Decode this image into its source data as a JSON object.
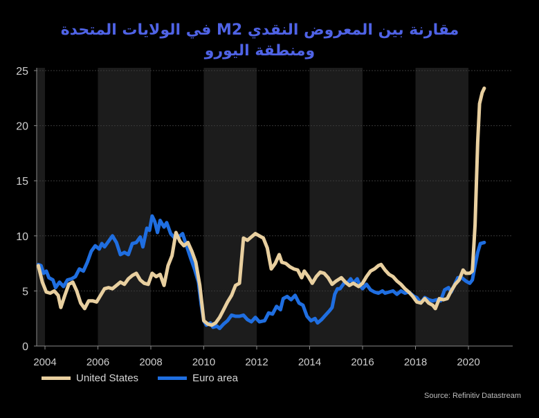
{
  "title_line1": "مقارنة بين المعروض النقدي M2  في الولايات المتحدة",
  "title_line2": "ومنطقة اليورو",
  "source": "Source: Refinitiv Datastream",
  "colors": {
    "background": "#000000",
    "band": "#1c1c1c",
    "us": "#e8cf9f",
    "euro": "#1f6ee0",
    "title": "#4f63e6",
    "axis": "#8a8a8a",
    "grid": "#3a3a3a"
  },
  "chart_data": {
    "type": "line",
    "title": "مقارنة بين المعروض النقدي M2  في الولايات المتحدة ومنطقة اليورو",
    "xlabel": "",
    "ylabel": "",
    "xlim": [
      2003.7,
      2021.7
    ],
    "ylim": [
      0,
      25
    ],
    "yticks": [
      0,
      5,
      10,
      15,
      20,
      25
    ],
    "ytick_labels": [
      "0",
      "5",
      "10",
      "15",
      "20",
      "25"
    ],
    "xticks": [
      2004,
      2006,
      2008,
      2010,
      2012,
      2014,
      2016,
      2018,
      2020
    ],
    "xtick_labels": [
      "2004",
      "2006",
      "2008",
      "2010",
      "2012",
      "2014",
      "2016",
      "2018",
      "2020"
    ],
    "shaded_bands": [
      [
        2003.7,
        2004
      ],
      [
        2006,
        2008
      ],
      [
        2010,
        2012
      ],
      [
        2014,
        2016
      ],
      [
        2018,
        2020
      ]
    ],
    "grid": "horizontal dotted",
    "legend": "bottom-left",
    "series": [
      {
        "name": "United States",
        "color": "#e8cf9f",
        "points": [
          [
            2003.75,
            7.3
          ],
          [
            2003.9,
            5.8
          ],
          [
            2004.05,
            4.9
          ],
          [
            2004.2,
            4.8
          ],
          [
            2004.35,
            5.0
          ],
          [
            2004.5,
            4.6
          ],
          [
            2004.6,
            3.5
          ],
          [
            2004.75,
            4.6
          ],
          [
            2004.9,
            5.6
          ],
          [
            2005.05,
            5.8
          ],
          [
            2005.2,
            5.0
          ],
          [
            2005.35,
            3.9
          ],
          [
            2005.5,
            3.4
          ],
          [
            2005.65,
            4.1
          ],
          [
            2005.8,
            4.1
          ],
          [
            2005.95,
            4.0
          ],
          [
            2006.1,
            4.6
          ],
          [
            2006.25,
            5.2
          ],
          [
            2006.4,
            5.3
          ],
          [
            2006.55,
            5.2
          ],
          [
            2006.7,
            5.5
          ],
          [
            2006.85,
            5.8
          ],
          [
            2007.0,
            5.6
          ],
          [
            2007.15,
            6.1
          ],
          [
            2007.3,
            6.4
          ],
          [
            2007.45,
            6.6
          ],
          [
            2007.6,
            6.0
          ],
          [
            2007.75,
            5.7
          ],
          [
            2007.9,
            5.6
          ],
          [
            2008.05,
            6.6
          ],
          [
            2008.2,
            6.3
          ],
          [
            2008.35,
            6.5
          ],
          [
            2008.5,
            5.5
          ],
          [
            2008.65,
            7.3
          ],
          [
            2008.8,
            8.2
          ],
          [
            2008.95,
            10.3
          ],
          [
            2009.1,
            9.5
          ],
          [
            2009.25,
            9.1
          ],
          [
            2009.4,
            9.4
          ],
          [
            2009.55,
            8.6
          ],
          [
            2009.7,
            7.6
          ],
          [
            2009.85,
            5.5
          ],
          [
            2010.0,
            2.3
          ],
          [
            2010.15,
            2.0
          ],
          [
            2010.3,
            1.9
          ],
          [
            2010.45,
            2.1
          ],
          [
            2010.6,
            2.6
          ],
          [
            2010.75,
            3.3
          ],
          [
            2010.9,
            4.0
          ],
          [
            2011.05,
            4.6
          ],
          [
            2011.2,
            5.5
          ],
          [
            2011.35,
            5.7
          ],
          [
            2011.5,
            9.8
          ],
          [
            2011.65,
            9.6
          ],
          [
            2011.8,
            9.9
          ],
          [
            2011.95,
            10.2
          ],
          [
            2012.1,
            10.0
          ],
          [
            2012.25,
            9.8
          ],
          [
            2012.4,
            8.9
          ],
          [
            2012.55,
            7.0
          ],
          [
            2012.7,
            7.5
          ],
          [
            2012.85,
            8.3
          ],
          [
            2012.95,
            7.6
          ],
          [
            2013.1,
            7.5
          ],
          [
            2013.25,
            7.2
          ],
          [
            2013.4,
            7.0
          ],
          [
            2013.55,
            6.9
          ],
          [
            2013.7,
            6.2
          ],
          [
            2013.8,
            6.8
          ],
          [
            2013.95,
            6.3
          ],
          [
            2014.1,
            5.7
          ],
          [
            2014.25,
            6.3
          ],
          [
            2014.4,
            6.7
          ],
          [
            2014.55,
            6.6
          ],
          [
            2014.7,
            6.2
          ],
          [
            2014.85,
            5.6
          ],
          [
            2015.0,
            5.9
          ],
          [
            2015.2,
            6.2
          ],
          [
            2015.35,
            5.8
          ],
          [
            2015.5,
            5.5
          ],
          [
            2015.65,
            5.7
          ],
          [
            2015.85,
            5.4
          ],
          [
            2016.0,
            5.7
          ],
          [
            2016.15,
            6.3
          ],
          [
            2016.3,
            6.8
          ],
          [
            2016.45,
            7.0
          ],
          [
            2016.6,
            7.3
          ],
          [
            2016.7,
            7.4
          ],
          [
            2016.85,
            6.9
          ],
          [
            2017.0,
            6.5
          ],
          [
            2017.15,
            6.3
          ],
          [
            2017.3,
            5.9
          ],
          [
            2017.45,
            5.6
          ],
          [
            2017.6,
            5.2
          ],
          [
            2017.75,
            4.9
          ],
          [
            2017.9,
            4.5
          ],
          [
            2018.05,
            4.0
          ],
          [
            2018.2,
            3.9
          ],
          [
            2018.35,
            4.3
          ],
          [
            2018.5,
            3.9
          ],
          [
            2018.65,
            3.7
          ],
          [
            2018.75,
            3.4
          ],
          [
            2018.9,
            4.3
          ],
          [
            2019.05,
            4.2
          ],
          [
            2019.2,
            4.3
          ],
          [
            2019.35,
            5.0
          ],
          [
            2019.5,
            5.6
          ],
          [
            2019.65,
            6.0
          ],
          [
            2019.8,
            6.9
          ],
          [
            2019.9,
            6.6
          ],
          [
            2020.05,
            6.6
          ],
          [
            2020.15,
            6.8
          ],
          [
            2020.25,
            11.0
          ],
          [
            2020.35,
            18.5
          ],
          [
            2020.42,
            22.0
          ],
          [
            2020.52,
            23.0
          ],
          [
            2020.6,
            23.4
          ]
        ]
      },
      {
        "name": "Euro area",
        "color": "#1f6ee0",
        "points": [
          [
            2003.75,
            7.4
          ],
          [
            2003.85,
            7.3
          ],
          [
            2003.95,
            6.6
          ],
          [
            2004.05,
            6.8
          ],
          [
            2004.15,
            6.2
          ],
          [
            2004.3,
            6.0
          ],
          [
            2004.4,
            5.3
          ],
          [
            2004.55,
            5.8
          ],
          [
            2004.7,
            5.4
          ],
          [
            2004.85,
            6.0
          ],
          [
            2005.0,
            6.1
          ],
          [
            2005.15,
            6.3
          ],
          [
            2005.3,
            7.0
          ],
          [
            2005.45,
            6.8
          ],
          [
            2005.6,
            7.6
          ],
          [
            2005.75,
            8.6
          ],
          [
            2005.9,
            9.1
          ],
          [
            2006.05,
            8.8
          ],
          [
            2006.15,
            9.3
          ],
          [
            2006.25,
            9.0
          ],
          [
            2006.4,
            9.5
          ],
          [
            2006.55,
            10.0
          ],
          [
            2006.7,
            9.4
          ],
          [
            2006.85,
            8.3
          ],
          [
            2007.0,
            8.5
          ],
          [
            2007.15,
            8.3
          ],
          [
            2007.3,
            9.3
          ],
          [
            2007.45,
            9.4
          ],
          [
            2007.6,
            9.9
          ],
          [
            2007.7,
            9.0
          ],
          [
            2007.85,
            10.7
          ],
          [
            2007.95,
            10.5
          ],
          [
            2008.05,
            11.8
          ],
          [
            2008.15,
            11.3
          ],
          [
            2008.25,
            10.3
          ],
          [
            2008.35,
            11.4
          ],
          [
            2008.5,
            10.8
          ],
          [
            2008.6,
            11.2
          ],
          [
            2008.75,
            10.2
          ],
          [
            2008.9,
            9.8
          ],
          [
            2009.05,
            9.9
          ],
          [
            2009.2,
            10.2
          ],
          [
            2009.35,
            9.1
          ],
          [
            2009.5,
            8.0
          ],
          [
            2009.65,
            7.0
          ],
          [
            2009.8,
            5.8
          ],
          [
            2009.9,
            3.8
          ],
          [
            2010.0,
            2.3
          ],
          [
            2010.1,
            1.9
          ],
          [
            2010.25,
            2.1
          ],
          [
            2010.35,
            1.7
          ],
          [
            2010.5,
            1.8
          ],
          [
            2010.6,
            1.6
          ],
          [
            2010.75,
            2.0
          ],
          [
            2010.9,
            2.3
          ],
          [
            2011.05,
            2.8
          ],
          [
            2011.2,
            2.7
          ],
          [
            2011.35,
            2.7
          ],
          [
            2011.5,
            2.8
          ],
          [
            2011.65,
            2.4
          ],
          [
            2011.8,
            2.2
          ],
          [
            2011.95,
            2.6
          ],
          [
            2012.1,
            2.2
          ],
          [
            2012.3,
            2.3
          ],
          [
            2012.45,
            3.0
          ],
          [
            2012.6,
            2.9
          ],
          [
            2012.75,
            3.6
          ],
          [
            2012.9,
            3.3
          ],
          [
            2013.0,
            4.3
          ],
          [
            2013.15,
            4.5
          ],
          [
            2013.3,
            4.2
          ],
          [
            2013.45,
            4.6
          ],
          [
            2013.6,
            3.9
          ],
          [
            2013.75,
            3.7
          ],
          [
            2013.9,
            2.7
          ],
          [
            2014.05,
            2.3
          ],
          [
            2014.2,
            2.5
          ],
          [
            2014.3,
            2.1
          ],
          [
            2014.45,
            2.4
          ],
          [
            2014.6,
            2.8
          ],
          [
            2014.75,
            3.2
          ],
          [
            2014.85,
            3.5
          ],
          [
            2014.95,
            4.7
          ],
          [
            2015.05,
            5.2
          ],
          [
            2015.15,
            5.2
          ],
          [
            2015.3,
            5.7
          ],
          [
            2015.45,
            5.8
          ],
          [
            2015.55,
            6.1
          ],
          [
            2015.65,
            5.7
          ],
          [
            2015.8,
            6.1
          ],
          [
            2015.9,
            5.5
          ],
          [
            2016.0,
            5.2
          ],
          [
            2016.15,
            5.6
          ],
          [
            2016.3,
            5.1
          ],
          [
            2016.45,
            4.9
          ],
          [
            2016.6,
            4.8
          ],
          [
            2016.75,
            5.0
          ],
          [
            2016.85,
            4.8
          ],
          [
            2017.0,
            4.9
          ],
          [
            2017.15,
            5.0
          ],
          [
            2017.3,
            4.7
          ],
          [
            2017.45,
            5.0
          ],
          [
            2017.6,
            4.8
          ],
          [
            2017.75,
            4.9
          ],
          [
            2017.85,
            4.7
          ],
          [
            2017.95,
            4.5
          ],
          [
            2018.05,
            4.4
          ],
          [
            2018.2,
            3.9
          ],
          [
            2018.35,
            4.4
          ],
          [
            2018.5,
            4.2
          ],
          [
            2018.65,
            4.1
          ],
          [
            2018.8,
            4.2
          ],
          [
            2018.95,
            4.1
          ],
          [
            2019.1,
            5.1
          ],
          [
            2019.25,
            5.3
          ],
          [
            2019.35,
            4.9
          ],
          [
            2019.5,
            5.7
          ],
          [
            2019.6,
            6.2
          ],
          [
            2019.75,
            6.2
          ],
          [
            2019.9,
            5.9
          ],
          [
            2020.05,
            5.7
          ],
          [
            2020.15,
            6.0
          ],
          [
            2020.25,
            7.3
          ],
          [
            2020.35,
            8.5
          ],
          [
            2020.45,
            9.3
          ],
          [
            2020.6,
            9.4
          ]
        ]
      }
    ]
  }
}
